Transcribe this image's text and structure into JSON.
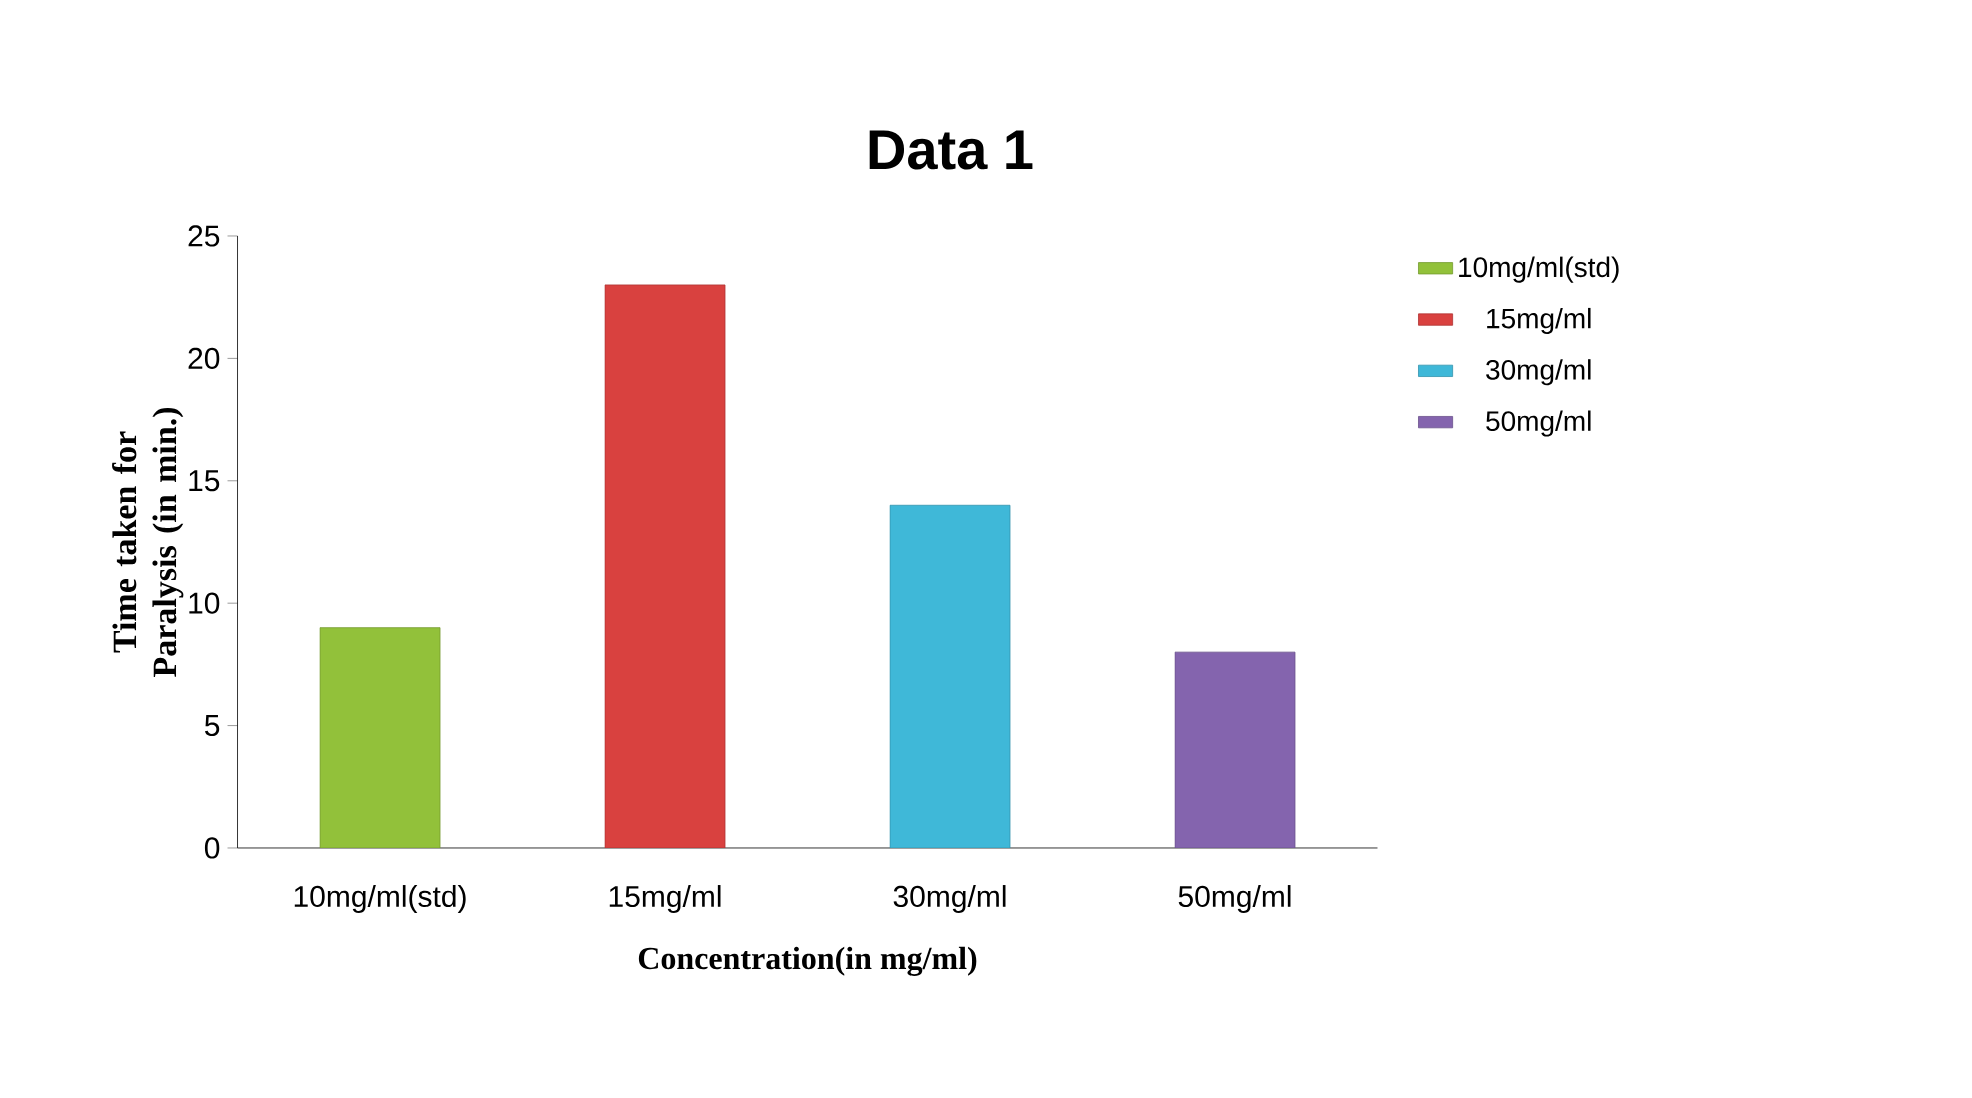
{
  "chart_data": {
    "type": "bar",
    "title": "Data 1",
    "xlabel": "Concentration(in mg/ml)",
    "ylabel": "Time taken for Paralysis (in min.)",
    "categories": [
      "10mg/ml(std)",
      "15mg/ml",
      "30mg/ml",
      "50mg/ml"
    ],
    "series": [
      {
        "name": "10mg/ml(std)",
        "color": "#92c13a",
        "values": [
          9,
          null,
          null,
          null
        ]
      },
      {
        "name": "15mg/ml",
        "color": "#d9413f",
        "values": [
          null,
          23,
          null,
          null
        ]
      },
      {
        "name": "30mg/ml",
        "color": "#3fb8d8",
        "values": [
          null,
          null,
          14,
          null
        ]
      },
      {
        "name": "50mg/ml",
        "color": "#8464ae",
        "values": [
          null,
          null,
          null,
          8
        ]
      }
    ],
    "ylim": [
      0,
      25
    ],
    "yticks": [
      0,
      5,
      10,
      15,
      20,
      25
    ],
    "legend": "right"
  }
}
